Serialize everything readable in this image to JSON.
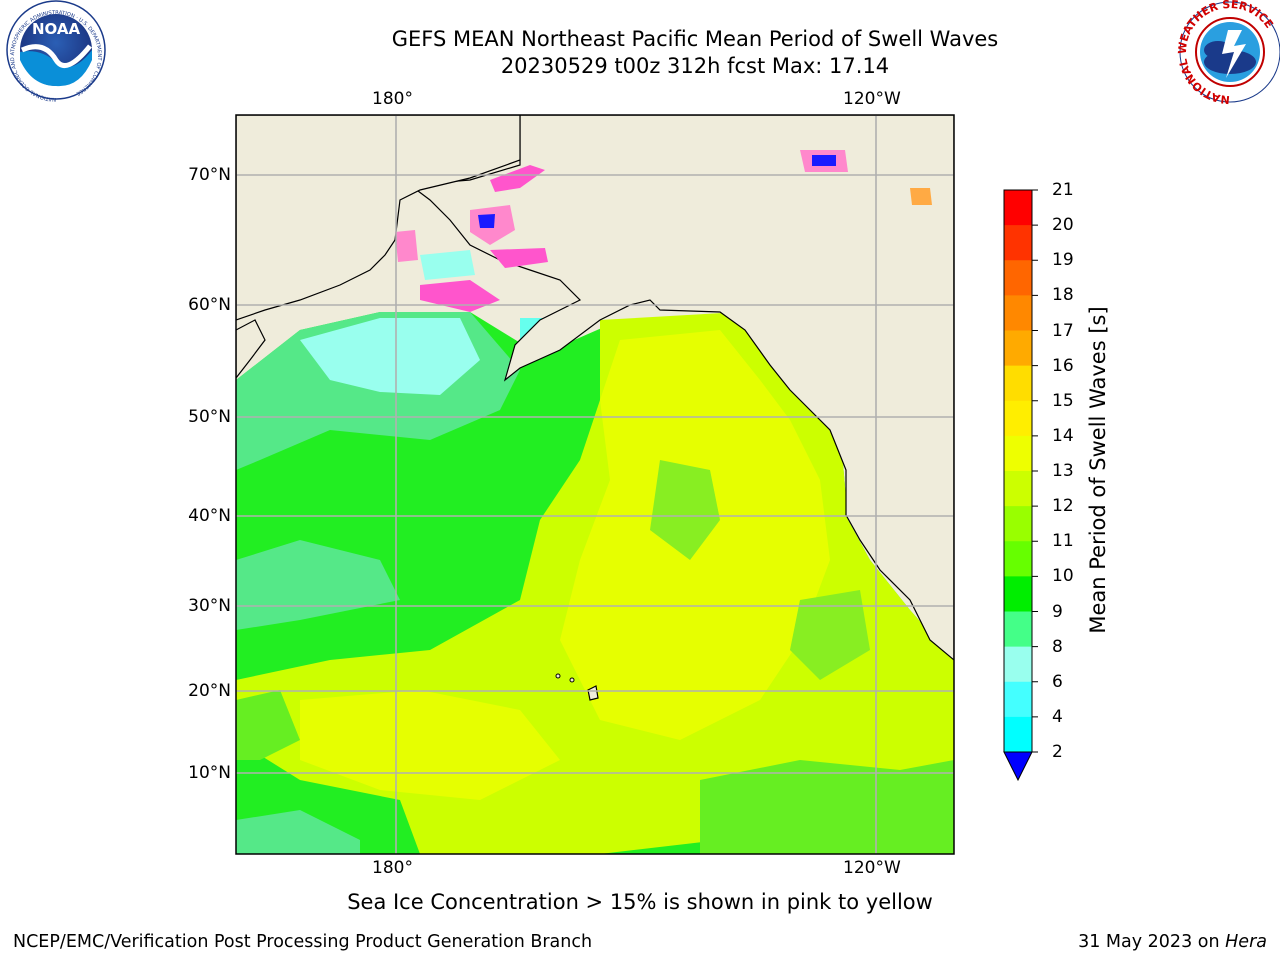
{
  "title": {
    "line1": "GEFS MEAN Northeast Pacific Mean Period of Swell Waves",
    "line2": "20230529 t00z 312h fcst   Max: 17.14"
  },
  "map": {
    "lon_labels_top": [
      "180°",
      "120°W"
    ],
    "lon_labels_bottom": [
      "180°",
      "120°W"
    ],
    "lat_labels": [
      "70°N",
      "60°N",
      "50°N",
      "40°N",
      "30°N",
      "20°N",
      "10°N"
    ],
    "land_color": "#efecdb",
    "grid_color": "#b0b0b0"
  },
  "colorbar": {
    "label": "Mean Period of Swell Waves [s]",
    "ticks": [
      "21",
      "20",
      "19",
      "18",
      "17",
      "16",
      "15",
      "14",
      "13",
      "12",
      "11",
      "10",
      "9",
      "8",
      "6",
      "4",
      "2"
    ],
    "colors": [
      "#ff0000",
      "#ff3300",
      "#ff6600",
      "#ff8800",
      "#ffaa00",
      "#ffdd00",
      "#ffee00",
      "#eeff00",
      "#ccff00",
      "#99ff00",
      "#66ff00",
      "#00ee00",
      "#44ff88",
      "#99ffee",
      "#44ffff",
      "#00ffff",
      "#00bbff",
      "#0066ff"
    ],
    "extend_color": "#0000ff"
  },
  "footnote": "Sea Ice Concentration > 15% is shown in pink to yellow",
  "credit_left": "NCEP/EMC/Verification Post Processing Product Generation Branch",
  "credit_right_date": "31 May 2023 on ",
  "credit_right_machine": "Hera",
  "logos": {
    "noaa": "NOAA",
    "noaa_ring": "NATIONAL OCEANIC AND ATMOSPHERIC ADMINISTRATION · U.S. DEPARTMENT OF COMMERCE",
    "nws_ring": "NATIONAL WEATHER SERVICE"
  }
}
